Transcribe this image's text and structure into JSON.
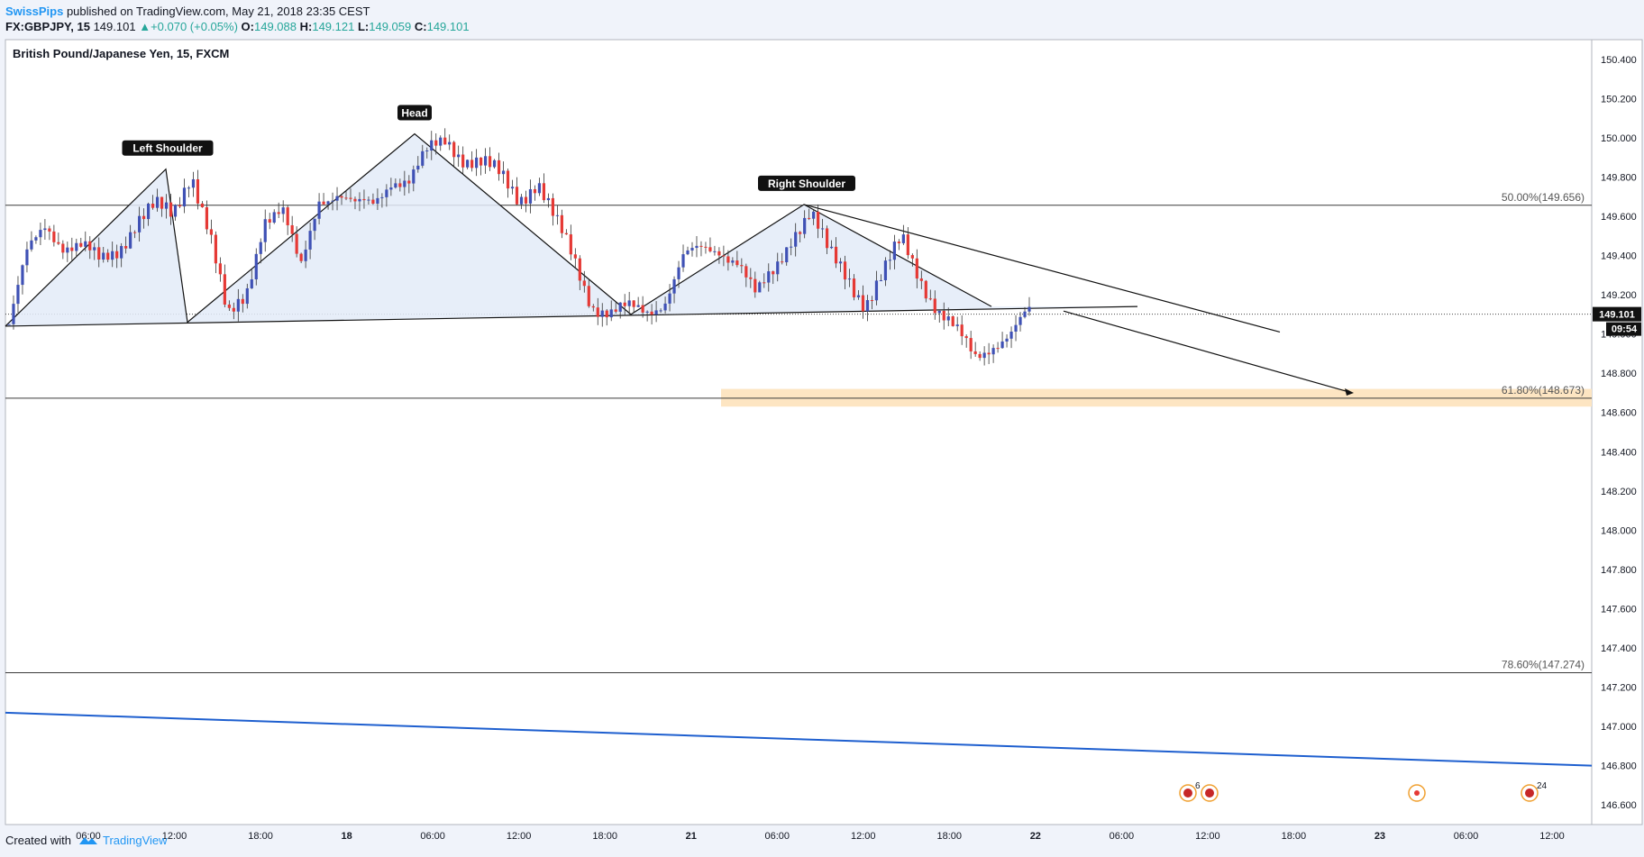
{
  "header": {
    "author": "SwissPips",
    "published_text": "published on TradingView.com, May 21, 2018 23:35 CEST",
    "symbol": "FX:GBPJPY, 15",
    "last": "149.101",
    "change": "+0.070 (+0.05%)",
    "o_label": "O:",
    "o_value": "149.088",
    "h_label": "H:",
    "h_value": "149.121",
    "l_label": "L:",
    "l_value": "149.059",
    "c_label": "C:",
    "c_value": "149.101"
  },
  "footer": {
    "created_with": "Created with",
    "brand": "TradingView"
  },
  "colors": {
    "bull": "#3f51b5",
    "bear": "#e53935",
    "trend": "#1e5fcf",
    "fib_zone": "#fde5c2",
    "pattern_fill": "#e3ebf8",
    "link": "#2196f3"
  },
  "chart_data": {
    "type": "candlestick",
    "title": "British Pound/Japanese Yen, 15, FXCM",
    "ylim": [
      146.5,
      150.5
    ],
    "y_ticks": [
      150.4,
      150.2,
      150.0,
      149.8,
      149.6,
      149.4,
      149.2,
      149.0,
      148.8,
      148.6,
      148.4,
      148.2,
      148.0,
      147.8,
      147.6,
      147.4,
      147.2,
      147.0,
      146.8,
      146.6
    ],
    "time_axis": {
      "ticks": [
        {
          "label": "06:00",
          "bold": false
        },
        {
          "label": "12:00",
          "bold": false
        },
        {
          "label": "18:00",
          "bold": false
        },
        {
          "label": "18",
          "bold": true
        },
        {
          "label": "06:00",
          "bold": false
        },
        {
          "label": "12:00",
          "bold": false
        },
        {
          "label": "18:00",
          "bold": false
        },
        {
          "label": "21",
          "bold": true
        },
        {
          "label": "06:00",
          "bold": false
        },
        {
          "label": "12:00",
          "bold": false
        },
        {
          "label": "18:00",
          "bold": false
        },
        {
          "label": "22",
          "bold": true
        },
        {
          "label": "06:00",
          "bold": false
        },
        {
          "label": "12:00",
          "bold": false
        },
        {
          "label": "18:00",
          "bold": false
        },
        {
          "label": "23",
          "bold": true
        },
        {
          "label": "06:00",
          "bold": false
        },
        {
          "label": "12:00",
          "bold": false
        }
      ]
    },
    "last_price": {
      "label": "149.101",
      "value": 149.101,
      "countdown": "09:54"
    },
    "fib_levels": [
      {
        "label": "50.00%(149.656)",
        "value": 149.656
      },
      {
        "label": "61.80%(148.673)",
        "value": 148.673
      },
      {
        "label": "78.60%(147.274)",
        "value": 147.274
      }
    ],
    "fib_zone": {
      "from": 148.63,
      "to": 148.72
    },
    "pattern_labels": [
      {
        "text": "Left Shoulder",
        "price": 149.84
      },
      {
        "text": "Head",
        "price": 150.02
      },
      {
        "text": "Right Shoulder",
        "price": 149.66
      }
    ],
    "price_path": [
      149.05,
      149.4,
      149.56,
      149.46,
      149.44,
      149.36,
      149.44,
      149.58,
      149.64,
      149.6,
      149.84,
      149.52,
      149.06,
      149.2,
      149.6,
      149.62,
      149.32,
      149.7,
      149.72,
      149.64,
      149.66,
      149.8,
      149.78,
      149.92,
      150.0,
      149.9,
      149.86,
      149.8,
      149.7,
      149.78,
      149.56,
      149.38,
      149.16,
      149.1,
      149.12,
      149.12,
      149.18,
      149.38,
      149.42,
      149.44,
      149.38,
      149.18,
      149.32,
      149.52,
      149.62,
      149.4,
      149.3,
      149.16,
      149.3,
      149.48,
      149.3,
      149.12,
      149.0,
      148.88,
      148.96,
      149.0,
      149.1
    ],
    "pattern_path": [
      149.04,
      149.84,
      149.06,
      150.02,
      149.1,
      149.66,
      149.14
    ],
    "neckline": [
      149.04,
      149.14
    ],
    "projection": [
      149.14,
      148.7
    ],
    "trendline": [
      147.07,
      146.8
    ],
    "event_markers": [
      {
        "text": "6"
      },
      {
        "text": ""
      },
      {
        "text": ""
      },
      {
        "text": "24"
      }
    ]
  }
}
